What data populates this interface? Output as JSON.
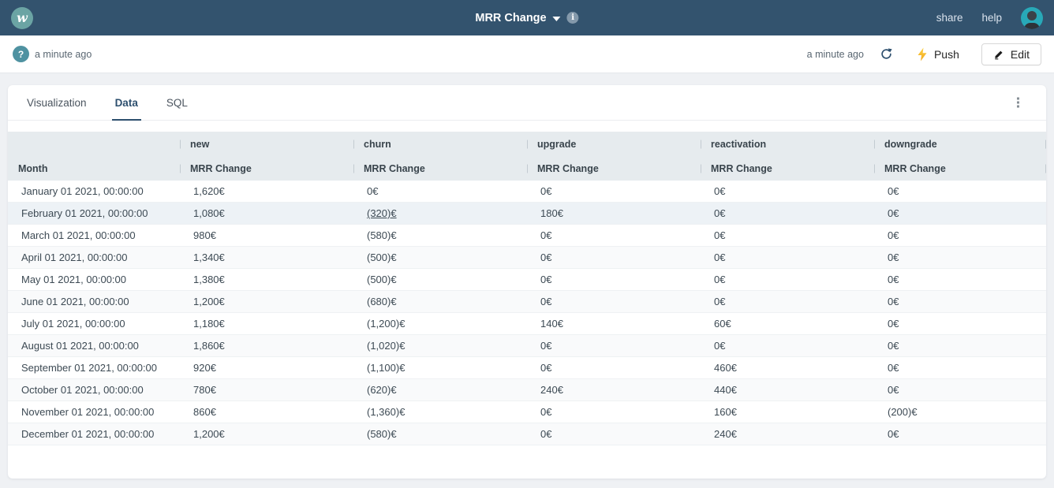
{
  "topbar": {
    "logo_letter": "w",
    "title": "MRR Change",
    "share_label": "share",
    "help_label": "help"
  },
  "toolbar": {
    "status_icon_label": "?",
    "updated_left": "a minute ago",
    "updated_right": "a minute ago",
    "push_label": "Push",
    "edit_label": "Edit"
  },
  "tabs": [
    {
      "label": "Visualization",
      "active": false
    },
    {
      "label": "Data",
      "active": true
    },
    {
      "label": "SQL",
      "active": false
    }
  ],
  "icons": {
    "logo": "whaly-logo-circle",
    "title_caret": "chevron-down",
    "info": "info-circle",
    "status": "question-circle",
    "refresh": "circular-arrow",
    "push": "lightning-bolt",
    "edit": "pencil",
    "more": "vertical-ellipsis"
  },
  "table": {
    "month_header": "Month",
    "value_subheader": "MRR Change",
    "groups": [
      "new",
      "churn",
      "upgrade",
      "reactivation",
      "downgrade"
    ],
    "rows": [
      {
        "month": "January 01 2021, 00:00:00",
        "values": [
          "1,620€",
          "0€",
          "0€",
          "0€",
          "0€"
        ]
      },
      {
        "month": "February 01 2021, 00:00:00",
        "values": [
          "1,080€",
          "(320)€",
          "180€",
          "0€",
          "0€"
        ]
      },
      {
        "month": "March 01 2021, 00:00:00",
        "values": [
          "980€",
          "(580)€",
          "0€",
          "0€",
          "0€"
        ]
      },
      {
        "month": "April 01 2021, 00:00:00",
        "values": [
          "1,340€",
          "(500)€",
          "0€",
          "0€",
          "0€"
        ]
      },
      {
        "month": "May 01 2021, 00:00:00",
        "values": [
          "1,380€",
          "(500)€",
          "0€",
          "0€",
          "0€"
        ]
      },
      {
        "month": "June 01 2021, 00:00:00",
        "values": [
          "1,200€",
          "(680)€",
          "0€",
          "0€",
          "0€"
        ]
      },
      {
        "month": "July 01 2021, 00:00:00",
        "values": [
          "1,180€",
          "(1,200)€",
          "140€",
          "60€",
          "0€"
        ]
      },
      {
        "month": "August 01 2021, 00:00:00",
        "values": [
          "1,860€",
          "(1,020)€",
          "0€",
          "0€",
          "0€"
        ]
      },
      {
        "month": "September 01 2021, 00:00:00",
        "values": [
          "920€",
          "(1,100)€",
          "0€",
          "460€",
          "0€"
        ]
      },
      {
        "month": "October 01 2021, 00:00:00",
        "values": [
          "780€",
          "(620)€",
          "240€",
          "440€",
          "0€"
        ]
      },
      {
        "month": "November 01 2021, 00:00:00",
        "values": [
          "860€",
          "(1,360)€",
          "0€",
          "160€",
          "(200)€"
        ]
      },
      {
        "month": "December 01 2021, 00:00:00",
        "values": [
          "1,200€",
          "(580)€",
          "0€",
          "240€",
          "0€"
        ]
      }
    ],
    "hovered_row_index": 1,
    "underlined_cell": {
      "row": 1,
      "col": 1
    }
  },
  "colors": {
    "topbar_bg": "#33536e",
    "logo_bg": "#6ba4a4",
    "avatar_bg": "#28a9b8",
    "accent": "#2d4f6e",
    "header_band_bg": "#e6ebee",
    "row_hover_bg": "#edf2f6",
    "row_stripe_bg": "#f9fafb",
    "push_bolt": "#f7b924",
    "page_bg": "#eff1f4"
  }
}
